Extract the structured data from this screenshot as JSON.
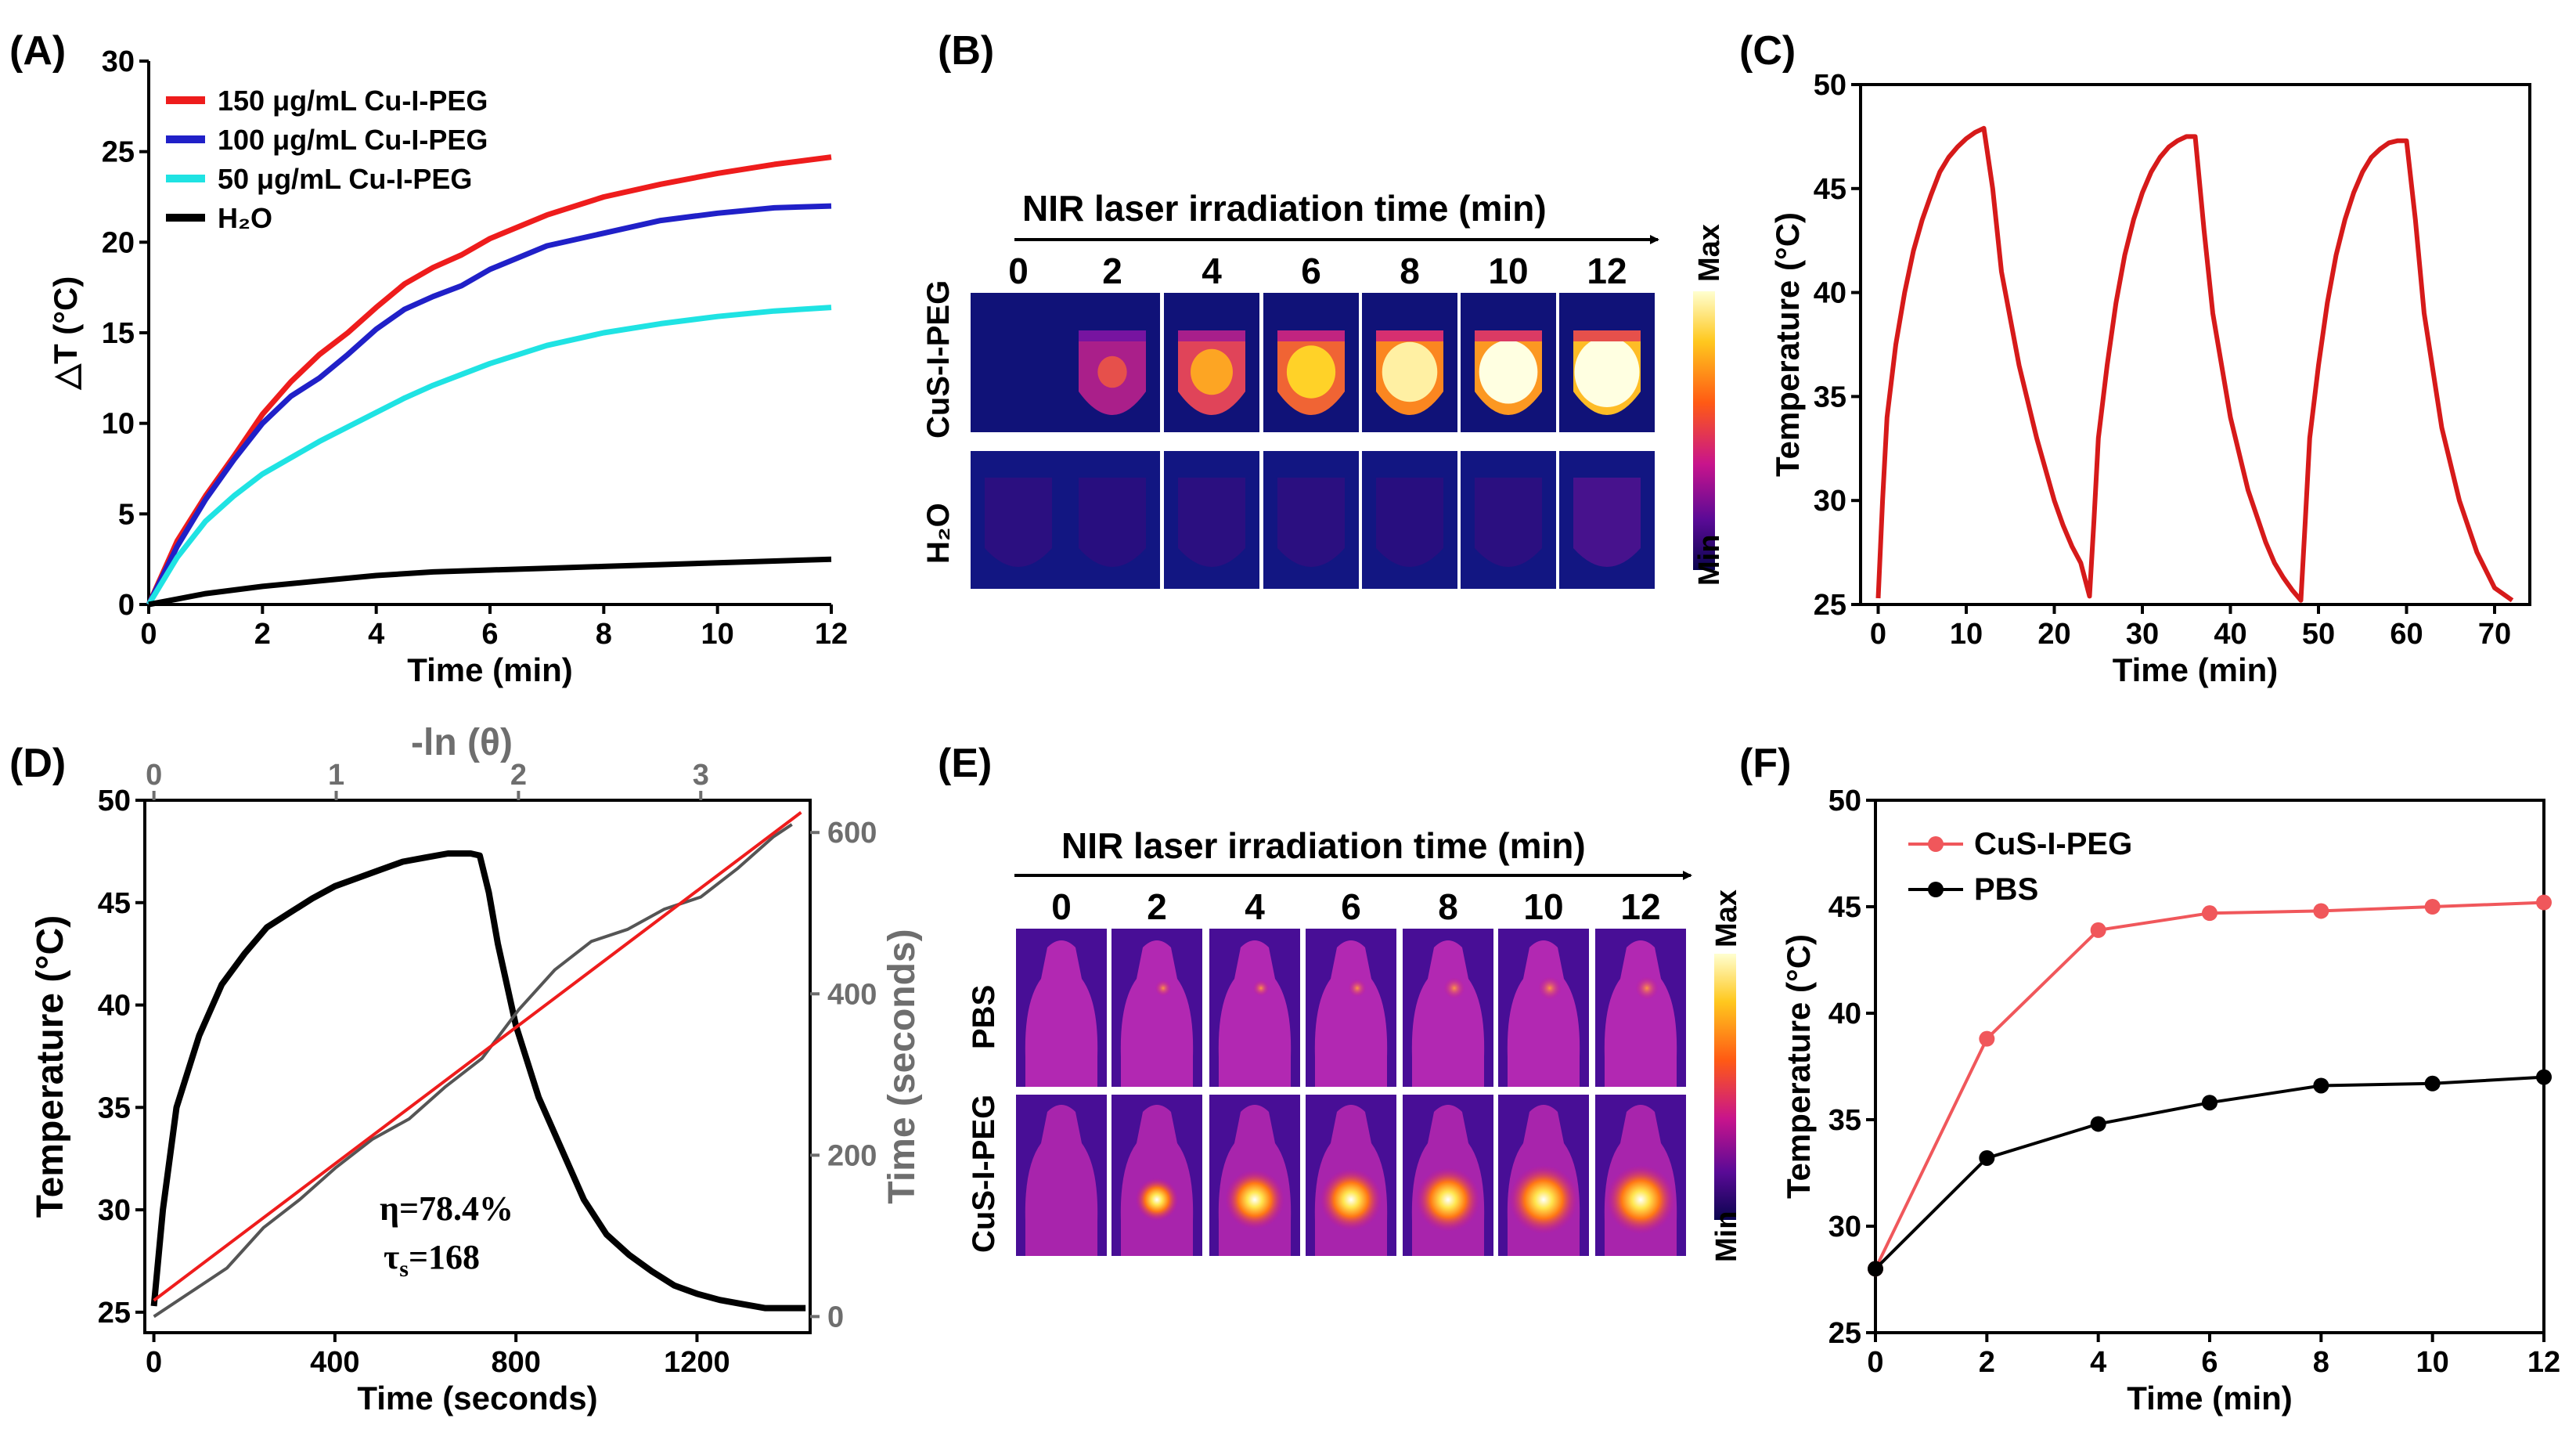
{
  "figure": {
    "labels": {
      "A": "(A)",
      "B": "(B)",
      "C": "(C)",
      "D": "(D)",
      "E": "(E)",
      "F": "(F)"
    }
  },
  "chart_data": [
    {
      "id": "A",
      "type": "line",
      "xlabel": "Time (min)",
      "ylabel": "△T (°C)",
      "xlim": [
        0,
        12
      ],
      "ylim": [
        0,
        30
      ],
      "xticks": [
        0,
        2,
        4,
        6,
        8,
        10,
        12
      ],
      "yticks": [
        0,
        5,
        10,
        15,
        20,
        25,
        30
      ],
      "legend_position": "top-left",
      "series": [
        {
          "name": "150 μg/mL Cu-I-PEG",
          "color": "#ee1c1c",
          "x": [
            0,
            0.5,
            1,
            1.5,
            2,
            2.5,
            3,
            3.5,
            4,
            4.5,
            5,
            5.5,
            6,
            7,
            8,
            9,
            10,
            11,
            12
          ],
          "y": [
            0,
            3.5,
            6,
            8.2,
            10.5,
            12.3,
            13.8,
            15,
            16.4,
            17.7,
            18.6,
            19.3,
            20.2,
            21.5,
            22.5,
            23.2,
            23.8,
            24.3,
            24.7
          ]
        },
        {
          "name": "100 μg/mL Cu-I-PEG",
          "color": "#2020c8",
          "x": [
            0,
            0.5,
            1,
            1.5,
            2,
            2.5,
            3,
            3.5,
            4,
            4.5,
            5,
            5.5,
            6,
            7,
            8,
            9,
            10,
            11,
            12
          ],
          "y": [
            0,
            3.2,
            5.8,
            8,
            10,
            11.5,
            12.5,
            13.8,
            15.2,
            16.3,
            17,
            17.6,
            18.5,
            19.8,
            20.5,
            21.2,
            21.6,
            21.9,
            22.0
          ]
        },
        {
          "name": " 50 μg/mL Cu-I-PEG",
          "color": "#1fe3e3",
          "x": [
            0,
            0.5,
            1,
            1.5,
            2,
            2.5,
            3,
            3.5,
            4,
            4.5,
            5,
            5.5,
            6,
            7,
            8,
            9,
            10,
            11,
            12
          ],
          "y": [
            0,
            2.6,
            4.6,
            6,
            7.2,
            8.1,
            9,
            9.8,
            10.6,
            11.4,
            12.1,
            12.7,
            13.3,
            14.3,
            15,
            15.5,
            15.9,
            16.2,
            16.4
          ]
        },
        {
          "name": "H₂O",
          "color": "#000000",
          "x": [
            0,
            1,
            2,
            3,
            4,
            5,
            6,
            7,
            8,
            9,
            10,
            11,
            12
          ],
          "y": [
            0,
            0.6,
            1.0,
            1.3,
            1.6,
            1.8,
            1.9,
            2.0,
            2.1,
            2.2,
            2.3,
            2.4,
            2.5
          ]
        }
      ]
    },
    {
      "id": "C",
      "type": "line",
      "xlabel": "Time (min)",
      "ylabel": "Temperature (°C)",
      "xlim": [
        -2,
        74
      ],
      "ylim": [
        25,
        50
      ],
      "xticks": [
        0,
        10,
        20,
        30,
        40,
        50,
        60,
        70
      ],
      "yticks": [
        25,
        30,
        35,
        40,
        45,
        50
      ],
      "series": [
        {
          "name": "cycles",
          "color": "#d61a1a",
          "x": [
            0,
            0.5,
            1,
            2,
            3,
            4,
            5,
            6,
            7,
            8,
            9,
            10,
            11,
            12,
            13,
            14,
            16,
            18,
            20,
            21,
            22,
            23,
            24,
            24.5,
            25,
            26,
            27,
            28,
            29,
            30,
            31,
            32,
            33,
            34,
            35,
            36,
            37,
            38,
            40,
            42,
            44,
            45,
            46,
            47,
            48,
            48.5,
            49,
            50,
            51,
            52,
            53,
            54,
            55,
            56,
            57,
            58,
            59,
            60,
            61,
            62,
            64,
            66,
            68,
            70,
            72
          ],
          "y": [
            25.3,
            30,
            34,
            37.5,
            40,
            42,
            43.5,
            44.7,
            45.8,
            46.5,
            47,
            47.4,
            47.7,
            47.9,
            45,
            41,
            36.5,
            33,
            30,
            28.8,
            27.8,
            27,
            25.4,
            29,
            33,
            36.5,
            39.5,
            41.8,
            43.5,
            44.8,
            45.8,
            46.5,
            47,
            47.3,
            47.5,
            47.5,
            43,
            39,
            34,
            30.5,
            28,
            27,
            26.3,
            25.7,
            25.2,
            29,
            33,
            36.5,
            39.5,
            41.8,
            43.5,
            44.8,
            45.8,
            46.5,
            46.9,
            47.2,
            47.3,
            47.3,
            43.5,
            39,
            33.5,
            30,
            27.5,
            25.8,
            25.2
          ]
        }
      ]
    },
    {
      "id": "D",
      "type": "line",
      "xlabel": "Time (seconds)",
      "ylabel": "Temperature (°C)",
      "x2label": "-ln (θ)",
      "y2label": "Time (seconds)",
      "xlim": [
        -20,
        1450
      ],
      "ylim": [
        24,
        50
      ],
      "x2lim": [
        -0.05,
        3.6
      ],
      "y2lim": [
        -20,
        640
      ],
      "xticks": [
        0,
        400,
        800,
        1200
      ],
      "yticks": [
        25,
        30,
        35,
        40,
        45,
        50
      ],
      "x2ticks": [
        0,
        1,
        2,
        3
      ],
      "y2ticks": [
        0,
        200,
        400,
        600
      ],
      "annotations": [
        "η=78.4%",
        "τ",
        "s",
        "=168"
      ],
      "series": [
        {
          "name": "temperature",
          "color": "#000000",
          "axis": "primary",
          "x": [
            0,
            20,
            50,
            100,
            150,
            200,
            250,
            300,
            350,
            400,
            450,
            500,
            550,
            600,
            650,
            700,
            720,
            740,
            760,
            800,
            850,
            900,
            950,
            1000,
            1050,
            1100,
            1150,
            1200,
            1250,
            1300,
            1350,
            1380,
            1440
          ],
          "y": [
            25.3,
            30,
            35,
            38.5,
            41,
            42.5,
            43.8,
            44.5,
            45.2,
            45.8,
            46.2,
            46.6,
            47,
            47.2,
            47.4,
            47.4,
            47.3,
            45.5,
            43,
            39,
            35.5,
            33,
            30.5,
            28.8,
            27.8,
            27,
            26.3,
            25.9,
            25.6,
            25.4,
            25.2,
            25.2,
            25.2
          ]
        },
        {
          "name": "-ln(θ) vs time",
          "color": "#555555",
          "axis": "secondary",
          "x": [
            0,
            0.2,
            0.4,
            0.6,
            0.8,
            1.0,
            1.2,
            1.4,
            1.6,
            1.8,
            2.0,
            2.2,
            2.4,
            2.6,
            2.8,
            3.0,
            3.2,
            3.4,
            3.5
          ],
          "y": [
            0,
            30,
            60,
            110,
            145,
            185,
            220,
            245,
            285,
            320,
            380,
            430,
            465,
            480,
            505,
            520,
            555,
            595,
            610
          ]
        },
        {
          "name": "linear fit",
          "color": "#ee1c1c",
          "axis": "secondary",
          "x": [
            0,
            3.55
          ],
          "y": [
            20,
            625
          ]
        }
      ]
    },
    {
      "id": "F",
      "type": "line",
      "xlabel": "Time (min)",
      "ylabel": "Temperature (°C)",
      "xlim": [
        0,
        12
      ],
      "ylim": [
        25,
        50
      ],
      "xticks": [
        0,
        2,
        4,
        6,
        8,
        10,
        12
      ],
      "yticks": [
        25,
        30,
        35,
        40,
        45,
        50
      ],
      "legend_position": "top-left",
      "series": [
        {
          "name": "CuS-I-PEG",
          "color": "#f0575b",
          "x": [
            0,
            2,
            4,
            6,
            8,
            10,
            12
          ],
          "y": [
            28,
            38.8,
            43.9,
            44.7,
            44.8,
            45,
            45.2
          ]
        },
        {
          "name": "PBS",
          "color": "#000000",
          "x": [
            0,
            2,
            4,
            6,
            8,
            10,
            12
          ],
          "y": [
            28,
            33.2,
            34.8,
            35.8,
            36.6,
            36.7,
            37
          ]
        }
      ]
    }
  ],
  "panelB": {
    "title": "NIR laser irradiation time (min)",
    "times": [
      "0",
      "2",
      "4",
      "6",
      "8",
      "10",
      "12"
    ],
    "rows": [
      "CuS-I-PEG",
      "H₂O"
    ],
    "scale_max": "Max",
    "scale_min": "Min",
    "intensity_top": [
      0,
      0.45,
      0.65,
      0.75,
      0.85,
      0.9,
      1.0
    ],
    "intensity_bottom": [
      0.05,
      0.04,
      0.05,
      0.05,
      0.04,
      0.05,
      0.15
    ]
  },
  "panelE": {
    "title": "NIR laser irradiation time (min)",
    "times": [
      "0",
      "2",
      "4",
      "6",
      "8",
      "10",
      "12"
    ],
    "rows": [
      "PBS",
      "CuS-I-PEG"
    ],
    "scale_max": "Max",
    "scale_min": "Min",
    "spot_top": [
      0,
      0.2,
      0.2,
      0.25,
      0.35,
      0.4,
      0.4
    ],
    "spot_bottom": [
      0,
      0.45,
      0.8,
      0.85,
      0.9,
      1.0,
      1.0
    ]
  }
}
